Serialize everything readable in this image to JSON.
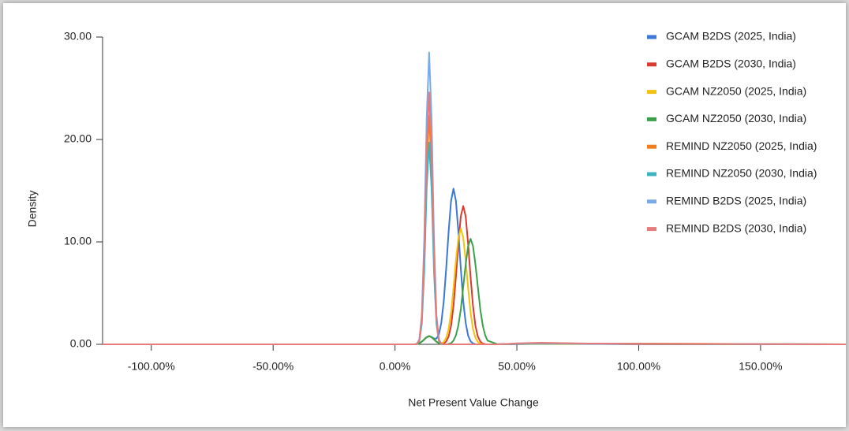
{
  "chart_data": {
    "type": "line",
    "x_label": "Net Present Value Change",
    "y_label": "Density",
    "x": [
      -120,
      0,
      5,
      8,
      9,
      10,
      11,
      12,
      13,
      14,
      15,
      16,
      17,
      18,
      19,
      20,
      21,
      22,
      23,
      24,
      25,
      26,
      27,
      28,
      29,
      30,
      31,
      32,
      33,
      34,
      35,
      36,
      37,
      38,
      42,
      46,
      50,
      60,
      80,
      100,
      140,
      185
    ],
    "xlim": [
      -120,
      185
    ],
    "xticks": [
      {
        "value": -100,
        "label": "-100.00%"
      },
      {
        "value": -50,
        "label": "-50.00%"
      },
      {
        "value": 0,
        "label": "0.00%"
      },
      {
        "value": 50,
        "label": "50.00%"
      },
      {
        "value": 100,
        "label": "100.00%"
      },
      {
        "value": 150,
        "label": "150.00%"
      }
    ],
    "ylim": [
      0,
      30
    ],
    "yticks": [
      {
        "value": 0,
        "label": "0.00"
      },
      {
        "value": 10,
        "label": "10.00"
      },
      {
        "value": 20,
        "label": "20.00"
      },
      {
        "value": 30,
        "label": "30.00"
      }
    ],
    "grid": false,
    "legend": "right",
    "series": [
      {
        "name": "GCAM B2DS (2025, India)",
        "color": "#3b78d8",
        "values": [
          0,
          0,
          0,
          0,
          0.02,
          0.11,
          0.26,
          0.48,
          0.7,
          0.8,
          0.72,
          0.57,
          0.56,
          0.96,
          2.1,
          4.2,
          7.4,
          11.0,
          14.0,
          15.2,
          14.0,
          11.0,
          7.4,
          4.2,
          2.1,
          0.85,
          0.3,
          0.09,
          0.02,
          0,
          0,
          0,
          0,
          0,
          0,
          0,
          0.02,
          0.05,
          0.03,
          0.01,
          0,
          0
        ]
      },
      {
        "name": "GCAM B2DS (2030, India)",
        "color": "#d93b2f",
        "values": [
          0,
          0,
          0,
          0,
          0.02,
          0.11,
          0.26,
          0.48,
          0.7,
          0.8,
          0.7,
          0.48,
          0.26,
          0.11,
          0.02,
          0.08,
          0.27,
          0.76,
          1.8,
          3.75,
          6.6,
          9.8,
          12.5,
          13.5,
          12.5,
          9.8,
          6.6,
          3.75,
          1.8,
          0.76,
          0.27,
          0.08,
          0.02,
          0,
          0,
          0.02,
          0.03,
          0.06,
          0.04,
          0.02,
          0,
          0
        ]
      },
      {
        "name": "GCAM NZ2050 (2025, India)",
        "color": "#f4c20d",
        "values": [
          0,
          0,
          0,
          0,
          0.02,
          0.11,
          0.26,
          0.48,
          0.7,
          0.8,
          0.7,
          0.48,
          0.26,
          0.13,
          0.07,
          0.23,
          0.63,
          1.5,
          3.1,
          5.5,
          8.2,
          10.4,
          11.3,
          10.4,
          8.2,
          5.5,
          3.1,
          1.5,
          0.63,
          0.23,
          0.07,
          0.02,
          0,
          0,
          0,
          0.02,
          0.04,
          0.06,
          0.04,
          0.03,
          0.01,
          0
        ]
      },
      {
        "name": "GCAM NZ2050 (2030, India)",
        "color": "#3aa14a",
        "values": [
          0,
          0,
          0,
          0,
          0.02,
          0.11,
          0.26,
          0.48,
          0.7,
          0.8,
          0.7,
          0.48,
          0.26,
          0.11,
          0.02,
          0,
          0,
          0.04,
          0.12,
          0.36,
          0.88,
          1.85,
          3.4,
          5.6,
          7.8,
          9.6,
          10.3,
          9.6,
          7.8,
          5.6,
          3.4,
          1.85,
          0.88,
          0.36,
          0.01,
          0.02,
          0.05,
          0.07,
          0.05,
          0.03,
          0.02,
          0
        ]
      },
      {
        "name": "REMIND NZ2050 (2025, India)",
        "color": "#f07f1b",
        "values": [
          0,
          0,
          0,
          0,
          0.04,
          0.38,
          2.3,
          8.0,
          17.3,
          22.3,
          17.3,
          8.0,
          2.3,
          0.38,
          0.04,
          0,
          0,
          0,
          0,
          0,
          0,
          0,
          0,
          0,
          0,
          0,
          0,
          0,
          0,
          0,
          0,
          0,
          0,
          0,
          0,
          0.02,
          0.06,
          0.12,
          0.06,
          0.08,
          0.04,
          0
        ]
      },
      {
        "name": "REMIND NZ2050 (2030, India)",
        "color": "#3ab5c0",
        "values": [
          0,
          0,
          0,
          0,
          0.03,
          0.33,
          2.0,
          7.1,
          15.3,
          19.7,
          15.3,
          7.1,
          2.0,
          0.33,
          0.03,
          0,
          0,
          0,
          0,
          0,
          0,
          0,
          0,
          0,
          0,
          0,
          0,
          0,
          0,
          0,
          0,
          0,
          0,
          0,
          0,
          0.02,
          0.05,
          0.1,
          0.07,
          0.05,
          0.03,
          0
        ]
      },
      {
        "name": "REMIND B2DS (2025, India)",
        "color": "#7aaae8",
        "values": [
          0,
          0,
          0,
          0,
          0.06,
          0.5,
          2.9,
          10.3,
          22.1,
          28.5,
          22.1,
          10.3,
          2.9,
          0.5,
          0.06,
          0,
          0,
          0,
          0,
          0,
          0,
          0,
          0,
          0,
          0,
          0,
          0,
          0,
          0,
          0,
          0,
          0,
          0,
          0,
          0,
          0.03,
          0.08,
          0.12,
          0.05,
          0.03,
          0.02,
          0
        ]
      },
      {
        "name": "REMIND B2DS (2030, India)",
        "color": "#e87a7a",
        "values": [
          0,
          0,
          0,
          0,
          0.04,
          0.42,
          2.5,
          8.9,
          19.1,
          24.6,
          19.1,
          8.9,
          2.5,
          0.42,
          0.04,
          0,
          0,
          0,
          0,
          0,
          0,
          0,
          0,
          0,
          0,
          0,
          0,
          0,
          0,
          0,
          0,
          0,
          0,
          0,
          0,
          0.04,
          0.1,
          0.15,
          0.08,
          0.05,
          0.03,
          0
        ]
      }
    ]
  }
}
